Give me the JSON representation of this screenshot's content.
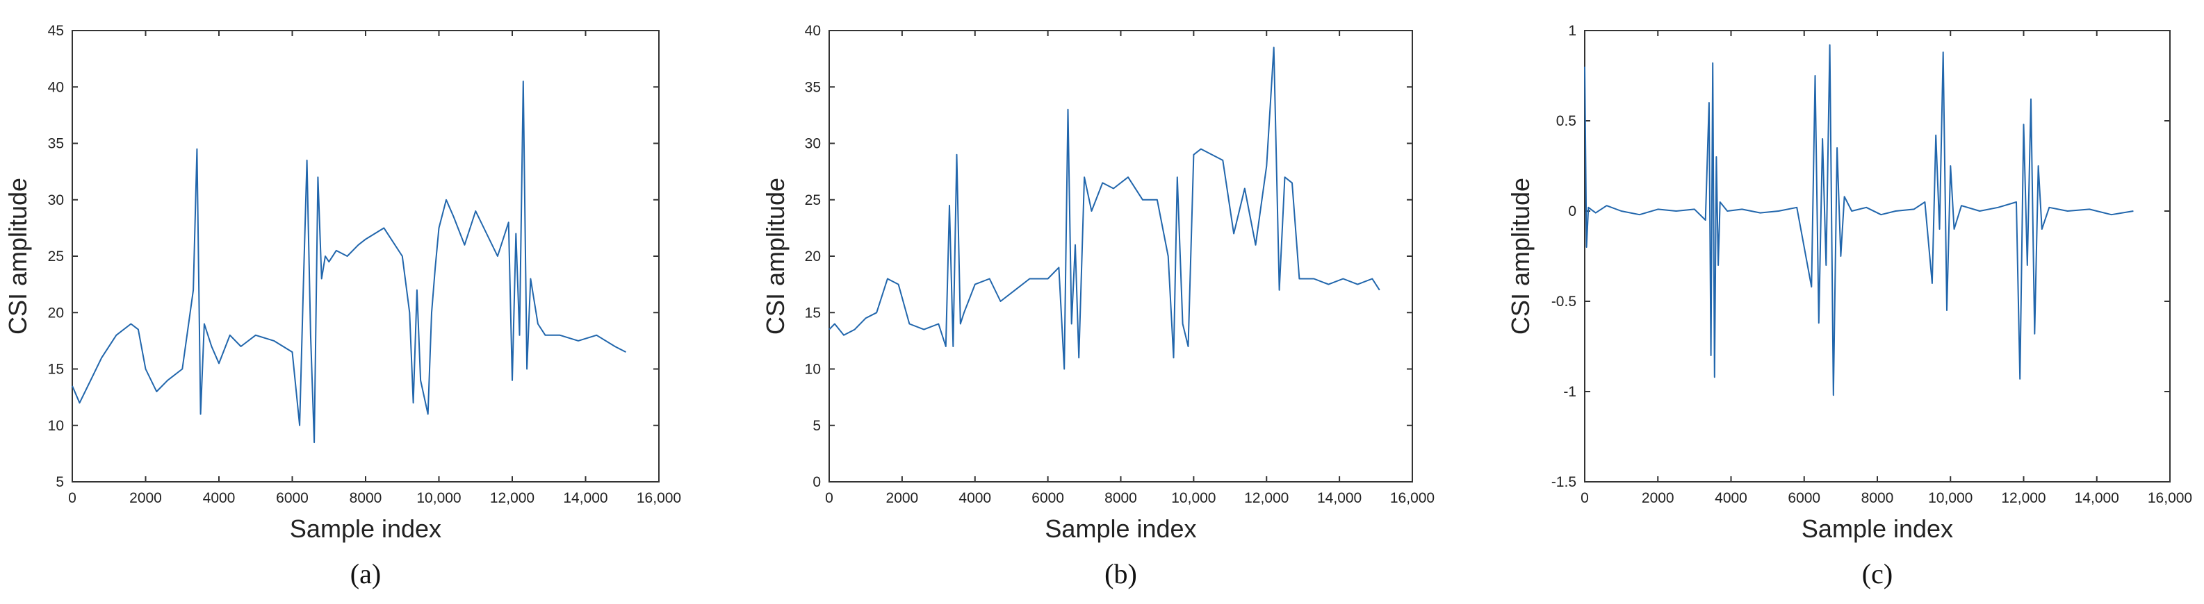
{
  "chart_data": [
    {
      "type": "line",
      "panel_label": "(a)",
      "xlabel": "Sample index",
      "ylabel": "CSI amplitude",
      "xlim": [
        0,
        16000
      ],
      "ylim": [
        5,
        45
      ],
      "xticks": [
        0,
        2000,
        4000,
        6000,
        8000,
        10000,
        12000,
        14000,
        16000
      ],
      "xtick_labels": [
        "0",
        "2000",
        "4000",
        "6000",
        "8000",
        "10,000",
        "12,000",
        "14,000",
        "16,000"
      ],
      "yticks": [
        5,
        10,
        15,
        20,
        25,
        30,
        35,
        40,
        45
      ],
      "ytick_labels": [
        "5",
        "10",
        "15",
        "20",
        "25",
        "30",
        "35",
        "40",
        "45"
      ],
      "color": "#2166ac",
      "series": [
        {
          "name": "CSI amplitude",
          "x": [
            0,
            200,
            500,
            800,
            1200,
            1600,
            1800,
            2000,
            2300,
            2600,
            3000,
            3300,
            3400,
            3500,
            3600,
            3800,
            4000,
            4300,
            4600,
            5000,
            5500,
            6000,
            6200,
            6300,
            6400,
            6500,
            6600,
            6700,
            6800,
            6900,
            7000,
            7200,
            7500,
            7800,
            8000,
            8500,
            9000,
            9200,
            9300,
            9400,
            9500,
            9700,
            9800,
            9900,
            10000,
            10200,
            10400,
            10700,
            11000,
            11300,
            11600,
            11900,
            12000,
            12100,
            12200,
            12300,
            12400,
            12500,
            12700,
            12900,
            13300,
            13800,
            14300,
            14800,
            15100
          ],
          "y": [
            13.5,
            12,
            14,
            16,
            18,
            19,
            18.5,
            15,
            13,
            14,
            15,
            22,
            34.5,
            11,
            19,
            17,
            15.5,
            18,
            17,
            18,
            17.5,
            16.5,
            10,
            22,
            33.5,
            18,
            8.5,
            32,
            23,
            25,
            24.5,
            25.5,
            25,
            26,
            26.5,
            27.5,
            25,
            20,
            12,
            22,
            14,
            11,
            20,
            24,
            27.5,
            30,
            28.5,
            26,
            29,
            27,
            25,
            28,
            14,
            27,
            18,
            40.5,
            15,
            23,
            19,
            18,
            18,
            17.5,
            18,
            17,
            16.5
          ]
        }
      ]
    },
    {
      "type": "line",
      "panel_label": "(b)",
      "xlabel": "Sample index",
      "ylabel": "CSI amplitude",
      "xlim": [
        0,
        16000
      ],
      "ylim": [
        0,
        40
      ],
      "xticks": [
        0,
        2000,
        4000,
        6000,
        8000,
        10000,
        12000,
        14000,
        16000
      ],
      "xtick_labels": [
        "0",
        "2000",
        "4000",
        "6000",
        "8000",
        "10,000",
        "12,000",
        "14,000",
        "16,000"
      ],
      "yticks": [
        0,
        5,
        10,
        15,
        20,
        25,
        30,
        35,
        40
      ],
      "ytick_labels": [
        "0",
        "5",
        "10",
        "15",
        "20",
        "25",
        "30",
        "35",
        "40"
      ],
      "color": "#2166ac",
      "series": [
        {
          "name": "CSI amplitude",
          "x": [
            0,
            150,
            400,
            700,
            1000,
            1300,
            1600,
            1900,
            2200,
            2600,
            3000,
            3200,
            3300,
            3400,
            3500,
            3600,
            3700,
            4000,
            4400,
            4700,
            5100,
            5500,
            6000,
            6300,
            6450,
            6550,
            6650,
            6750,
            6850,
            7000,
            7200,
            7500,
            7800,
            8200,
            8600,
            9000,
            9300,
            9450,
            9550,
            9700,
            9850,
            10000,
            10200,
            10500,
            10800,
            11100,
            11400,
            11700,
            12000,
            12200,
            12350,
            12500,
            12700,
            12900,
            13300,
            13700,
            14100,
            14500,
            14900,
            15100
          ],
          "y": [
            13.5,
            14,
            13,
            13.5,
            14.5,
            15,
            18,
            17.5,
            14,
            13.5,
            14,
            12,
            24.5,
            12,
            29,
            14,
            15,
            17.5,
            18,
            16,
            17,
            18,
            18,
            19,
            10,
            33,
            14,
            21,
            11,
            27,
            24,
            26.5,
            26,
            27,
            25,
            25,
            20,
            11,
            27,
            14,
            12,
            29,
            29.5,
            29,
            28.5,
            22,
            26,
            21,
            28,
            38.5,
            17,
            27,
            26.5,
            18,
            18,
            17.5,
            18,
            17.5,
            18,
            17
          ]
        }
      ]
    },
    {
      "type": "line",
      "panel_label": "(c)",
      "xlabel": "Sample index",
      "ylabel": "CSI amplitude",
      "xlim": [
        0,
        16000
      ],
      "ylim": [
        -1.5,
        1
      ],
      "xticks": [
        0,
        2000,
        4000,
        6000,
        8000,
        10000,
        12000,
        14000,
        16000
      ],
      "xtick_labels": [
        "0",
        "2000",
        "4000",
        "6000",
        "8000",
        "10,000",
        "12,000",
        "14,000",
        "16,000"
      ],
      "yticks": [
        -1.5,
        -1,
        -0.5,
        0,
        0.5,
        1
      ],
      "ytick_labels": [
        "-1.5",
        "-1",
        "-0.5",
        "0",
        "0.5",
        "1"
      ],
      "color": "#2166ac",
      "series": [
        {
          "name": "CSI amplitude",
          "x": [
            0,
            50,
            100,
            300,
            600,
            1000,
            1500,
            2000,
            2500,
            3000,
            3300,
            3400,
            3450,
            3500,
            3550,
            3600,
            3650,
            3700,
            3900,
            4300,
            4800,
            5300,
            5800,
            6200,
            6300,
            6400,
            6500,
            6600,
            6700,
            6800,
            6900,
            7000,
            7100,
            7300,
            7700,
            8100,
            8500,
            9000,
            9300,
            9500,
            9600,
            9700,
            9800,
            9900,
            10000,
            10100,
            10300,
            10800,
            11300,
            11800,
            11900,
            12000,
            12100,
            12200,
            12300,
            12400,
            12500,
            12700,
            13200,
            13800,
            14400,
            15000
          ],
          "y": [
            0.8,
            -0.2,
            0.02,
            -0.01,
            0.03,
            0,
            -0.02,
            0.01,
            0,
            0.01,
            -0.05,
            0.6,
            -0.8,
            0.82,
            -0.92,
            0.3,
            -0.3,
            0.05,
            0,
            0.01,
            -0.01,
            0,
            0.02,
            -0.42,
            0.75,
            -0.62,
            0.4,
            -0.3,
            0.92,
            -1.02,
            0.35,
            -0.25,
            0.08,
            0,
            0.02,
            -0.02,
            0,
            0.01,
            0.05,
            -0.4,
            0.42,
            -0.1,
            0.88,
            -0.55,
            0.25,
            -0.1,
            0.03,
            0,
            0.02,
            0.05,
            -0.93,
            0.48,
            -0.3,
            0.62,
            -0.68,
            0.25,
            -0.1,
            0.02,
            0,
            0.01,
            -0.02,
            0
          ]
        }
      ]
    }
  ]
}
